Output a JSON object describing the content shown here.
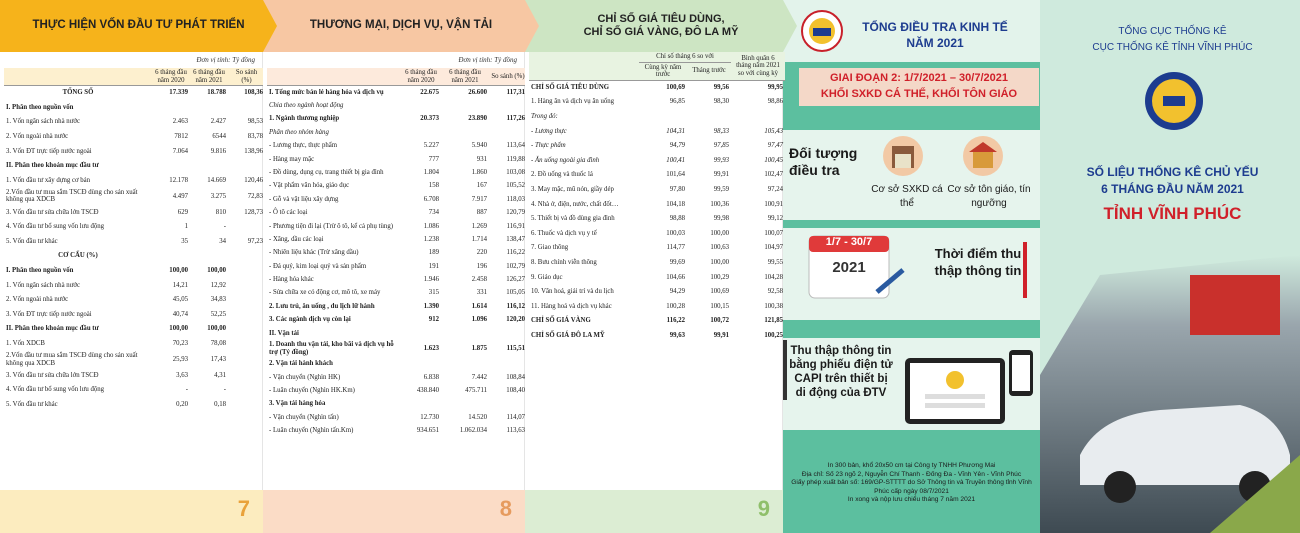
{
  "panels": [
    {
      "title": [
        "THỰC HIỆN VỐN ĐẦU TƯ PHÁT TRIỂN"
      ],
      "unit": "Đơn vị tính: Tỷ đồng",
      "headers": [
        "6 tháng đầu năm 2020",
        "6 tháng đầu năm 2021",
        "So sánh (%)"
      ],
      "rows": [
        {
          "cells": [
            "TỔNG SỐ",
            "17.339",
            "18.788",
            "108,36"
          ],
          "style": "heading"
        },
        {
          "cells": [
            "I. Phân theo nguồn vốn"
          ],
          "style": "bold"
        },
        {
          "cells": [
            "1. Vốn ngân sách nhà nước",
            "2.463",
            "2.427",
            "98,53"
          ]
        },
        {
          "cells": [
            "2. Vốn ngoài nhà nước",
            "7812",
            "6544",
            "83,78"
          ]
        },
        {
          "cells": [
            "3. Vốn ĐT trực tiếp nước ngoài",
            "7.064",
            "9.816",
            "138,96"
          ]
        },
        {
          "cells": [
            "II. Phân theo khoản mục đầu tư"
          ],
          "style": "bold"
        },
        {
          "cells": [
            "1. Vốn đầu tư xây dựng cơ bản",
            "12.178",
            "14.669",
            "120,46"
          ]
        },
        {
          "cells": [
            "2.Vốn đầu tư mua sắm TSCĐ dùng cho sản xuất không qua XDCB",
            "4.497",
            "3.275",
            "72,83"
          ]
        },
        {
          "cells": [
            "3. Vốn đầu tư sửa chữa lớn TSCĐ",
            "629",
            "810",
            "128,73"
          ]
        },
        {
          "cells": [
            "4. Vốn đầu tư bổ sung vốn lưu động",
            "1",
            "-"
          ]
        },
        {
          "cells": [
            "5. Vốn đầu tư khác",
            "35",
            "34",
            "97,23"
          ]
        },
        {
          "cells": [
            "CƠ CẤU (%)"
          ],
          "style": "heading"
        },
        {
          "cells": [
            "I. Phân theo nguồn vốn",
            "100,00",
            "100,00"
          ],
          "style": "bold"
        },
        {
          "cells": [
            "1. Vốn ngân sách nhà nước",
            "14,21",
            "12,92"
          ]
        },
        {
          "cells": [
            "2. Vốn ngoài nhà nước",
            "45,05",
            "34,83"
          ]
        },
        {
          "cells": [
            "3. Vốn ĐT trực tiếp nước ngoài",
            "40,74",
            "52,25"
          ]
        },
        {
          "cells": [
            "II. Phân theo khoản mục đầu tư",
            "100,00",
            "100,00"
          ],
          "style": "bold"
        },
        {
          "cells": [
            "1. Vốn XDCB",
            "70,23",
            "78,08"
          ]
        },
        {
          "cells": [
            "2.Vốn đầu tư mua sắm TSCĐ dùng cho sản xuất không qua XDCB",
            "25,93",
            "17,43"
          ]
        },
        {
          "cells": [
            "3. Vốn đầu tư sửa chữa lớn TSCĐ",
            "3,63",
            "4,31"
          ]
        },
        {
          "cells": [
            "4. Vốn đầu tư bổ sung vốn lưu động",
            "-",
            "-"
          ]
        },
        {
          "cells": [
            "5. Vốn đầu tư khác",
            "0,20",
            "0,18"
          ]
        }
      ],
      "page": "7"
    },
    {
      "title": [
        "THƯƠNG MẠI, DỊCH VỤ, VẬN TẢI"
      ],
      "unit": "Đơn vị tính: Tỷ đồng",
      "headers": [
        "6 tháng đầu năm 2020",
        "6 tháng đầu năm 2021",
        "So sánh (%)"
      ],
      "rows": [
        {
          "cells": [
            "I. Tổng mức bán lẻ hàng hóa và dịch vụ",
            "22.675",
            "26.600",
            "117,31"
          ],
          "style": "bold"
        },
        {
          "cells": [
            "Chia theo ngành hoạt động"
          ],
          "style": "italic"
        },
        {
          "cells": [
            "1. Ngành thương nghiệp",
            "20.373",
            "23.890",
            "117,26"
          ],
          "style": "bold"
        },
        {
          "cells": [
            "Phân theo nhóm hàng"
          ],
          "style": "italic"
        },
        {
          "cells": [
            "- Lương thực, thực phẩm",
            "5.227",
            "5.940",
            "113,64"
          ]
        },
        {
          "cells": [
            "- Hàng may mặc",
            "777",
            "931",
            "119,88"
          ]
        },
        {
          "cells": [
            "- Đồ dùng, dụng cụ, trang thiết bị gia đình",
            "1.804",
            "1.860",
            "103,08"
          ]
        },
        {
          "cells": [
            "- Vật phẩm văn hóa, giáo dục",
            "158",
            "167",
            "105,52"
          ]
        },
        {
          "cells": [
            "- Gỗ và vật liệu xây dựng",
            "6.708",
            "7.917",
            "118,03"
          ]
        },
        {
          "cells": [
            "- Ô tô các loại",
            "734",
            "887",
            "120,79"
          ]
        },
        {
          "cells": [
            "- Phương tiện đi lại (Trừ ô tô, kể cả phụ tùng)",
            "1.086",
            "1.269",
            "116,91"
          ]
        },
        {
          "cells": [
            "- Xăng, dầu các loại",
            "1.238",
            "1.714",
            "138,47"
          ]
        },
        {
          "cells": [
            "- Nhiên liệu khác (Trừ xăng dầu)",
            "189",
            "220",
            "116,22"
          ]
        },
        {
          "cells": [
            "- Đá quý, kim loại quý và sản phẩm",
            "191",
            "196",
            "102,79"
          ]
        },
        {
          "cells": [
            "- Hàng hóa khác",
            "1.946",
            "2.458",
            "126,27"
          ]
        },
        {
          "cells": [
            "- Sửa chữa xe có động cơ, mô tô, xe máy",
            "315",
            "331",
            "105,05"
          ]
        },
        {
          "cells": [
            "2. Lưu trú, ăn uống , du lịch lữ hành",
            "1.390",
            "1.614",
            "116,12"
          ],
          "style": "bold"
        },
        {
          "cells": [
            "3. Các ngành dịch vụ còn lại",
            "912",
            "1.096",
            "120,20"
          ],
          "style": "bold"
        },
        {
          "cells": [
            "II. Vận tải"
          ],
          "style": "bold"
        },
        {
          "cells": [
            "1. Doanh thu vận tải, kho bãi và dịch vụ hỗ trợ (Tỷ đồng)",
            "1.623",
            "1.875",
            "115,51"
          ],
          "style": "bold"
        },
        {
          "cells": [
            "2. Vận tải hành khách"
          ],
          "style": "bold"
        },
        {
          "cells": [
            "- Vận chuyển (Nghìn HK)",
            "6.838",
            "7.442",
            "108,84"
          ]
        },
        {
          "cells": [
            "- Luân chuyển (Nghìn HK.Km)",
            "438.840",
            "475.711",
            "108,40"
          ]
        },
        {
          "cells": [
            "3. Vận tải hàng hóa"
          ],
          "style": "bold"
        },
        {
          "cells": [
            "- Vận chuyển (Nghìn tấn)",
            "12.730",
            "14.520",
            "114,07"
          ]
        },
        {
          "cells": [
            "- Luân chuyển (Nghìn tấn.Km)",
            "934.651",
            "1.062.034",
            "113,63"
          ]
        }
      ],
      "page": "8"
    },
    {
      "title": [
        "CHỈ SỐ GIÁ TIÊU DÙNG,",
        "CHỈ SỐ GIÁ VÀNG, ĐÔ LA MỸ"
      ],
      "unit": "Đơn vị tính: %",
      "header_group": "Chỉ số tháng 6 so với",
      "headers": [
        "Cùng kỳ năm trước",
        "Tháng trước",
        "Bình quân 6 tháng năm 2021 so với cùng kỳ"
      ],
      "rows": [
        {
          "cells": [
            "CHỈ SỐ GIÁ TIÊU DÙNG",
            "100,69",
            "99,56",
            "99,95"
          ],
          "style": "bold"
        },
        {
          "cells": [
            "1. Hàng ăn và dịch vụ ăn uống",
            "96,85",
            "98,30",
            "98,86"
          ]
        },
        {
          "cells": [
            "Trong đó:"
          ],
          "style": "italic"
        },
        {
          "cells": [
            "- Lương thực",
            "104,31",
            "98,33",
            "105,43"
          ],
          "style": "italic"
        },
        {
          "cells": [
            "- Thực phẩm",
            "94,79",
            "97,85",
            "97,47"
          ],
          "style": "italic"
        },
        {
          "cells": [
            "- Ăn uống ngoài gia đình",
            "100,41",
            "99,93",
            "100,45"
          ],
          "style": "italic"
        },
        {
          "cells": [
            "2. Đồ uống và thuốc lá",
            "101,64",
            "99,91",
            "102,47"
          ]
        },
        {
          "cells": [
            "3. May mặc, mũ nón, giầy dép",
            "97,80",
            "99,59",
            "97,24"
          ]
        },
        {
          "cells": [
            "4. Nhà ở, điện, nước, chất đốt…",
            "104,18",
            "100,36",
            "100,91"
          ]
        },
        {
          "cells": [
            "5. Thiết bị và đồ dùng gia đình",
            "98,88",
            "99,98",
            "99,12"
          ]
        },
        {
          "cells": [
            "6. Thuốc và dịch vụ y tế",
            "100,03",
            "100,00",
            "100,07"
          ]
        },
        {
          "cells": [
            "7. Giao thông",
            "114,77",
            "100,63",
            "104,97"
          ]
        },
        {
          "cells": [
            "8. Bưu chính viễn thông",
            "99,69",
            "100,00",
            "99,55"
          ]
        },
        {
          "cells": [
            "9. Giáo dục",
            "104,66",
            "100,29",
            "104,28"
          ]
        },
        {
          "cells": [
            "10. Văn hoá, giải trí và du lịch",
            "94,29",
            "100,69",
            "92,58"
          ]
        },
        {
          "cells": [
            "11. Hàng hoá và dịch vụ khác",
            "100,28",
            "100,15",
            "100,38"
          ]
        },
        {
          "cells": [
            "CHỈ SỐ GIÁ VÀNG",
            "116,22",
            "100,72",
            "121,85"
          ],
          "style": "bold"
        },
        {
          "cells": [
            "CHỈ SỐ GIÁ ĐÔ LA MỸ",
            "99,63",
            "99,91",
            "100,25"
          ],
          "style": "bold"
        }
      ],
      "page": "9"
    }
  ],
  "cover": {
    "census_title": [
      "TỔNG ĐIỀU TRA KINH TẾ",
      "NĂM 2021"
    ],
    "agency": [
      "TỔNG CỤC THỐNG KÊ",
      "CỤC THỐNG KÊ TỈNH VĨNH PHÚC"
    ],
    "phase": [
      "GIAI ĐOẠN 2: 1/7/2021 – 30/7/2021",
      "KHỐI SXKD CÁ THỂ, KHỐI TÔN GIÁO"
    ],
    "subjects_title": "Đối tượng điều tra",
    "subjects": [
      "Cơ sở SXKD cá thể",
      "Cơ sở tôn giáo, tín ngưỡng"
    ],
    "calendar": [
      "1/7 - 30/7",
      "2021"
    ],
    "time_label": "Thời điểm thu thập thông tin",
    "method": "Thu thập thông tin bằng phiếu điện tử CAPI trên thiết bị di động của ĐTV",
    "main_title": [
      "SỐ LIỆU THỐNG KÊ CHỦ YẾU",
      "6 THÁNG ĐẦU NĂM 2021"
    ],
    "province": "TỈNH VĨNH PHÚC",
    "imprint": [
      "In 300 bản, khổ 20x50 cm tại Công ty TNHH Phương Mai",
      "Địa chỉ: Số 23 ngõ 2, Nguyễn Chí Thanh - Đống Đa - Vĩnh Yên - Vĩnh Phúc",
      "Giấy phép xuất bản số: 169/GP-STTTT do Sở Thông tin và Truyền thông tỉnh Vĩnh Phúc cấp ngày 08/7/2021",
      "In xong và nộp lưu chiểu tháng 7 năm 2021"
    ]
  }
}
